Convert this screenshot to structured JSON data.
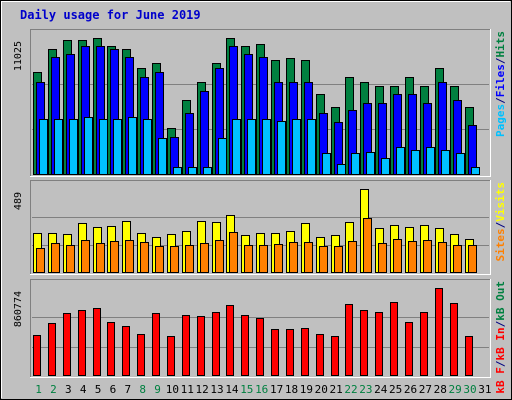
{
  "chart_data": {
    "type": "bar",
    "title": "Daily usage for June 2019",
    "colors": {
      "title": "#0000cc",
      "background": "#c0c0c0",
      "hits": "#008040",
      "files": "#0000ff",
      "pages": "#00c0ff",
      "visits": "#ffff00",
      "sites": "#ff8000",
      "kbin": "#ff0000",
      "weekend_label": "#008040",
      "weekday_label": "#000080"
    },
    "categories": [
      "1",
      "2",
      "3",
      "4",
      "5",
      "6",
      "7",
      "8",
      "9",
      "10",
      "11",
      "12",
      "13",
      "14",
      "15",
      "16",
      "17",
      "18",
      "19",
      "20",
      "21",
      "22",
      "23",
      "24",
      "25",
      "26",
      "27",
      "28",
      "29",
      "30",
      "31"
    ],
    "weekend": [
      true,
      true,
      false,
      false,
      false,
      false,
      false,
      true,
      true,
      false,
      false,
      false,
      false,
      false,
      true,
      true,
      false,
      false,
      false,
      false,
      false,
      true,
      true,
      false,
      false,
      false,
      false,
      false,
      true,
      true,
      false
    ],
    "panels": [
      {
        "id": "usage",
        "ymax_label": "11025",
        "ymax": 11025,
        "legend": [
          {
            "text": "Pages",
            "color": "#00c0ff"
          },
          {
            "text": "/",
            "color": "#000080"
          },
          {
            "text": "Files",
            "color": "#0000ff"
          },
          {
            "text": "/",
            "color": "#000080"
          },
          {
            "text": "Hits",
            "color": "#008040"
          }
        ],
        "series": [
          {
            "name": "Hits",
            "color": "#008040",
            "values": [
              8270,
              10145,
              10830,
              10830,
              11025,
              10395,
              10145,
              8645,
              9020,
              3760,
              6015,
              7520,
              9020,
              11025,
              10395,
              10520,
              9270,
              9395,
              9270,
              6515,
              5450,
              7895,
              7520,
              7140,
              7140,
              7895,
              7140,
              8645,
              7140,
              5450,
              0
            ]
          },
          {
            "name": "Files",
            "color": "#0000ff",
            "values": [
              7520,
              9520,
              9770,
              10395,
              10395,
              10145,
              9520,
              7895,
              8270,
              3070,
              5015,
              6765,
              8645,
              10395,
              9775,
              9520,
              7520,
              7520,
              7520,
              5015,
              4260,
              5265,
              5770,
              5770,
              6515,
              6515,
              5770,
              7520,
              6015,
              4010,
              0
            ]
          },
          {
            "name": "Pages",
            "color": "#00c0ff",
            "values": [
              4510,
              4510,
              4510,
              4635,
              4510,
              4510,
              4635,
              4510,
              2960,
              625,
              625,
              625,
              2960,
              4510,
              4510,
              4510,
              4385,
              4510,
              4510,
              1755,
              880,
              1755,
              1880,
              1380,
              2260,
              2010,
              2260,
              2010,
              1755,
              625,
              0
            ]
          }
        ]
      },
      {
        "id": "visits",
        "ymax_label": "489",
        "ymax": 489,
        "legend": [
          {
            "text": "Sites",
            "color": "#ff8000"
          },
          {
            "text": "/",
            "color": "#000080"
          },
          {
            "text": "Visits",
            "color": "#ffff00"
          }
        ],
        "series": [
          {
            "name": "Visits",
            "color": "#ffff00",
            "values": [
              234,
              234,
              229,
              290,
              265,
              275,
              300,
              234,
              211,
              225,
              245,
              305,
              295,
              340,
              223,
              234,
              230,
              244,
              290,
              210,
              224,
              294,
              490,
              264,
              279,
              265,
              280,
              264,
              225,
              200,
              0
            ]
          },
          {
            "name": "Sites",
            "color": "#ff8000",
            "values": [
              146,
              175,
              163,
              195,
              175,
              185,
              195,
              180,
              155,
              158,
              165,
              175,
              190,
              240,
              163,
              165,
              170,
              178,
              180,
              155,
              160,
              185,
              320,
              175,
              200,
              185,
              195,
              180,
              163,
              165,
              0
            ]
          }
        ]
      },
      {
        "id": "kb",
        "ymax_label": "860774",
        "ymax": 860774,
        "legend": [
          {
            "text": "kB F",
            "color": "#ff0000"
          },
          {
            "text": "/",
            "color": "#000080"
          },
          {
            "text": "kB In",
            "color": "#ff0000"
          },
          {
            "text": "/",
            "color": "#000080"
          },
          {
            "text": "kB Out",
            "color": "#008040"
          }
        ],
        "series": [
          {
            "name": "kB In",
            "color": "#ff0000",
            "values": [
              470,
              605,
              720,
              755,
              780,
              620,
              575,
              480,
              725,
              460,
              705,
              685,
              730,
              810,
              695,
              660,
              545,
              545,
              555,
              485,
              455,
              830,
              760,
              730,
              850,
              620,
              730,
              1010,
              840,
              455,
              0
            ]
          }
        ]
      }
    ]
  }
}
